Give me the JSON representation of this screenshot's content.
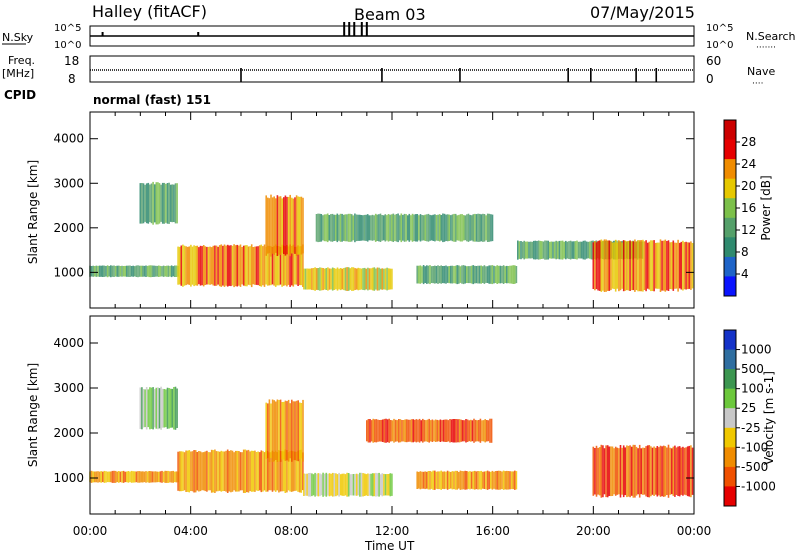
{
  "header": {
    "station": "Halley (fitACF)",
    "beam": "Beam 03",
    "date": "07/May/2015"
  },
  "status_panels": {
    "nsky": {
      "label": "N.Sky",
      "left_ticks": [
        "10^5",
        "10^0"
      ],
      "right_label": "N.Search",
      "right_ticks": [
        "10^5",
        "10^0"
      ],
      "right_dots": "·······"
    },
    "freq": {
      "label_top": "Freq.",
      "label_unit": "[MHz]",
      "left_ticks": [
        "18",
        "8"
      ],
      "right_label": "Nave",
      "right_ticks": [
        "60",
        "0"
      ],
      "right_dots": "····"
    },
    "cpid": {
      "label": "CPID",
      "mode_text": "normal (fast) 151"
    }
  },
  "chart_data": [
    {
      "type": "heatmap",
      "name": "power",
      "ylabel": "Slant Range [km]",
      "xlabel": "Time UT",
      "xlim_hours": [
        0,
        24
      ],
      "ylim": [
        200,
        4600
      ],
      "yticks": [
        1000,
        2000,
        3000,
        4000
      ],
      "colorbar": {
        "label": "Power [dB]",
        "range": [
          0,
          32
        ],
        "ticks": [
          "4",
          "8",
          "12",
          "16",
          "20",
          "24",
          "28"
        ],
        "colors": [
          "#0a14ff",
          "#1e64c8",
          "#2f8a6e",
          "#55a06a",
          "#7cc04a",
          "#e6c800",
          "#f08c00",
          "#e60000",
          "#cc0000"
        ]
      },
      "echo_regions": [
        {
          "t0": 0.0,
          "t1": 3.5,
          "r0": 900,
          "r1": 1150,
          "level": 10
        },
        {
          "t0": 3.5,
          "t1": 8.5,
          "r0": 700,
          "r1": 1600,
          "level": 24
        },
        {
          "t0": 7.0,
          "t1": 8.5,
          "r0": 1400,
          "r1": 2700,
          "level": 22
        },
        {
          "t0": 2.0,
          "t1": 3.5,
          "r0": 2100,
          "r1": 3000,
          "level": 12
        },
        {
          "t0": 8.5,
          "t1": 12.0,
          "r0": 600,
          "r1": 1100,
          "level": 18
        },
        {
          "t0": 9.0,
          "t1": 16.0,
          "r0": 1700,
          "r1": 2300,
          "level": 12
        },
        {
          "t0": 13.0,
          "t1": 17.0,
          "r0": 750,
          "r1": 1150,
          "level": 10
        },
        {
          "t0": 17.0,
          "t1": 22.0,
          "r0": 1300,
          "r1": 1700,
          "level": 12
        },
        {
          "t0": 20.0,
          "t1": 24.0,
          "r0": 600,
          "r1": 1700,
          "level": 22
        }
      ]
    },
    {
      "type": "heatmap",
      "name": "velocity",
      "ylabel": "Slant Range [km]",
      "xlabel": "Time UT",
      "xlim_hours": [
        0,
        24
      ],
      "ylim": [
        200,
        4600
      ],
      "yticks": [
        1000,
        2000,
        3000,
        4000
      ],
      "xticks": [
        "00:00",
        "04:00",
        "08:00",
        "12:00",
        "16:00",
        "20:00",
        "00:00"
      ],
      "colorbar": {
        "label": "Velocity [m s-1]",
        "ticks": [
          "1000",
          "500",
          "100",
          "25",
          "-25",
          "-100",
          "-500",
          "-1000"
        ],
        "colors": [
          "#1432c8",
          "#2f6ea0",
          "#3c9650",
          "#6cc83c",
          "#c8c8c8",
          "#f0c800",
          "#f08c00",
          "#f05000",
          "#e60000"
        ]
      },
      "echo_regions": [
        {
          "t0": 0.0,
          "t1": 3.5,
          "r0": 900,
          "r1": 1150,
          "level": -100
        },
        {
          "t0": 3.5,
          "t1": 8.5,
          "r0": 700,
          "r1": 1600,
          "level": -100
        },
        {
          "t0": 7.0,
          "t1": 8.5,
          "r0": 1400,
          "r1": 2700,
          "level": -100
        },
        {
          "t0": 2.0,
          "t1": 3.5,
          "r0": 2100,
          "r1": 3000,
          "level": 100
        },
        {
          "t0": 8.5,
          "t1": 12.0,
          "r0": 600,
          "r1": 1100,
          "level": 25
        },
        {
          "t0": 11.0,
          "t1": 16.0,
          "r0": 1800,
          "r1": 2300,
          "level": -500
        },
        {
          "t0": 13.0,
          "t1": 17.0,
          "r0": 750,
          "r1": 1150,
          "level": -100
        },
        {
          "t0": 20.0,
          "t1": 24.0,
          "r0": 600,
          "r1": 1700,
          "level": -500
        }
      ]
    }
  ]
}
